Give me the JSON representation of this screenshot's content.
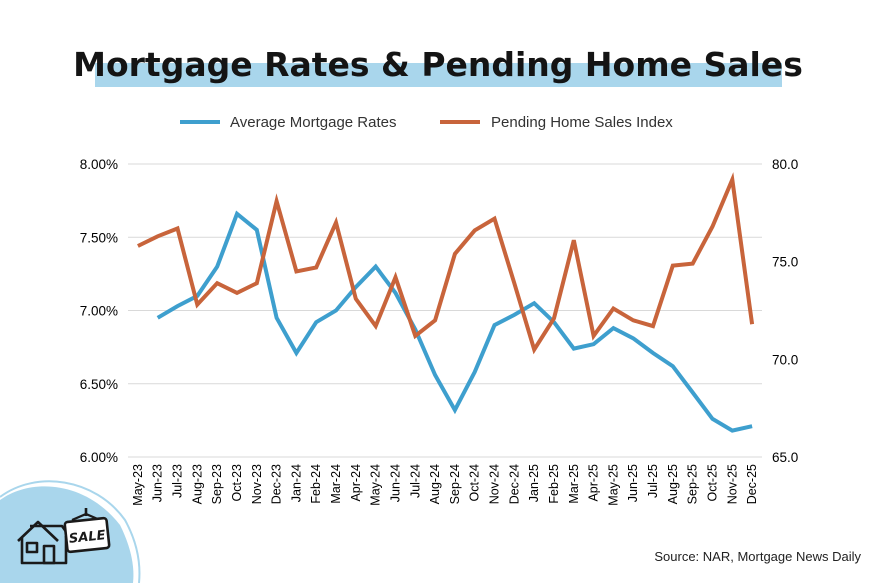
{
  "chart_data": {
    "type": "line",
    "title": "Mortgage Rates & Pending Home Sales",
    "source": "Source: NAR, Mortgage News Daily",
    "badge_text": "SALE",
    "categories": [
      "May-23",
      "Jun-23",
      "Jul-23",
      "Aug-23",
      "Sep-23",
      "Oct-23",
      "Nov-23",
      "Dec-23",
      "Jan-24",
      "Feb-24",
      "Mar-24",
      "Apr-24",
      "May-24",
      "Jun-24",
      "Jul-24",
      "Aug-24",
      "Sep-24",
      "Oct-24",
      "Nov-24",
      "Dec-24",
      "Jan-25",
      "Feb-25",
      "Mar-25",
      "Apr-25",
      "May-25",
      "Jun-25",
      "Jul-25",
      "Aug-25",
      "Sep-25",
      "Oct-25",
      "Nov-25",
      "Dec-25"
    ],
    "left_axis": {
      "ylim": [
        6.0,
        8.0
      ],
      "ticks": [
        6.0,
        6.5,
        7.0,
        7.5,
        8.0
      ],
      "tick_labels": [
        "6.00%",
        "6.50%",
        "7.00%",
        "7.50%",
        "8.00%"
      ]
    },
    "right_axis": {
      "ylim": [
        65.0,
        80.0
      ],
      "ticks": [
        65.0,
        70.0,
        75.0,
        80.0
      ],
      "tick_labels": [
        "65.0",
        "70.0",
        "75.0",
        "80.0"
      ]
    },
    "grid": true,
    "legend_position": "top-center",
    "series": [
      {
        "name": "Average Mortgage Rates",
        "axis": "left",
        "color": "#3E9FCE",
        "values": [
          null,
          6.95,
          7.03,
          7.1,
          7.3,
          7.66,
          7.55,
          6.95,
          6.71,
          6.92,
          7.0,
          7.16,
          7.3,
          7.12,
          6.87,
          6.56,
          6.32,
          6.58,
          6.9,
          6.97,
          7.05,
          6.92,
          6.74,
          6.77,
          6.88,
          6.81,
          6.71,
          6.62,
          6.44,
          6.26,
          6.18,
          6.21
        ]
      },
      {
        "name": "Pending Home Sales Index",
        "axis": "right",
        "color": "#C8643B",
        "values": [
          75.8,
          76.3,
          76.7,
          72.8,
          73.9,
          73.4,
          73.9,
          78.1,
          74.5,
          74.7,
          77.0,
          73.1,
          71.7,
          74.2,
          71.2,
          72.0,
          75.4,
          76.6,
          77.2,
          73.9,
          70.5,
          72.1,
          76.1,
          71.2,
          72.6,
          72.0,
          71.7,
          74.8,
          74.9,
          76.8,
          79.2,
          71.8
        ]
      }
    ]
  }
}
